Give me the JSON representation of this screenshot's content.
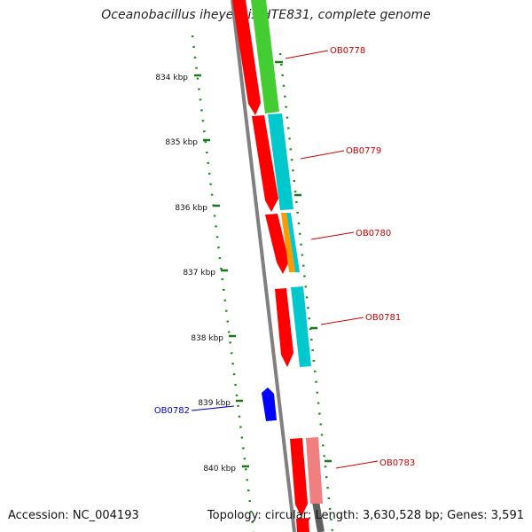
{
  "title": "Oceanobacillus iheyensis HTE831, complete genome",
  "accession": "Accession: NC_004193",
  "summary": "Topology: circular; Length: 3,630,528 bp; Genes: 3,591",
  "ticks": [
    {
      "label": "834 kbp"
    },
    {
      "label": "835 kbp"
    },
    {
      "label": "836 kbp"
    },
    {
      "label": "837 kbp"
    },
    {
      "label": "838 kbp"
    },
    {
      "label": "839 kbp"
    },
    {
      "label": "840 kbp"
    }
  ],
  "genes": [
    {
      "name": "OB0778",
      "strand": "reverse",
      "label_color": "#cc0000",
      "cds_color": "#ff0000",
      "cog_color": "#44cc33"
    },
    {
      "name": "OB0779",
      "strand": "reverse",
      "label_color": "#cc0000",
      "cds_color": "#ff0000",
      "cog_color": "#00c8cc"
    },
    {
      "name": "OB0780",
      "strand": "reverse",
      "label_color": "#cc0000",
      "cds_color": "#ff0000",
      "cog_color": "#ff9900",
      "cog_color2": "#00c8cc"
    },
    {
      "name": "OB0781",
      "strand": "reverse",
      "label_color": "#cc0000",
      "cds_color": "#ff0000",
      "cog_color": "#00c8cc"
    },
    {
      "name": "OB0782",
      "strand": "forward",
      "label_color": "#0000cc",
      "cds_color": "#0000ff"
    },
    {
      "name": "OB0783",
      "strand": "reverse",
      "label_color": "#cc0000",
      "cds_color": "#ff0000",
      "cog_color": "#f08080"
    }
  ],
  "colors": {
    "backbone": "#808080",
    "tick": "#1a7a1a",
    "gc_dots": "#1a8a1a"
  }
}
